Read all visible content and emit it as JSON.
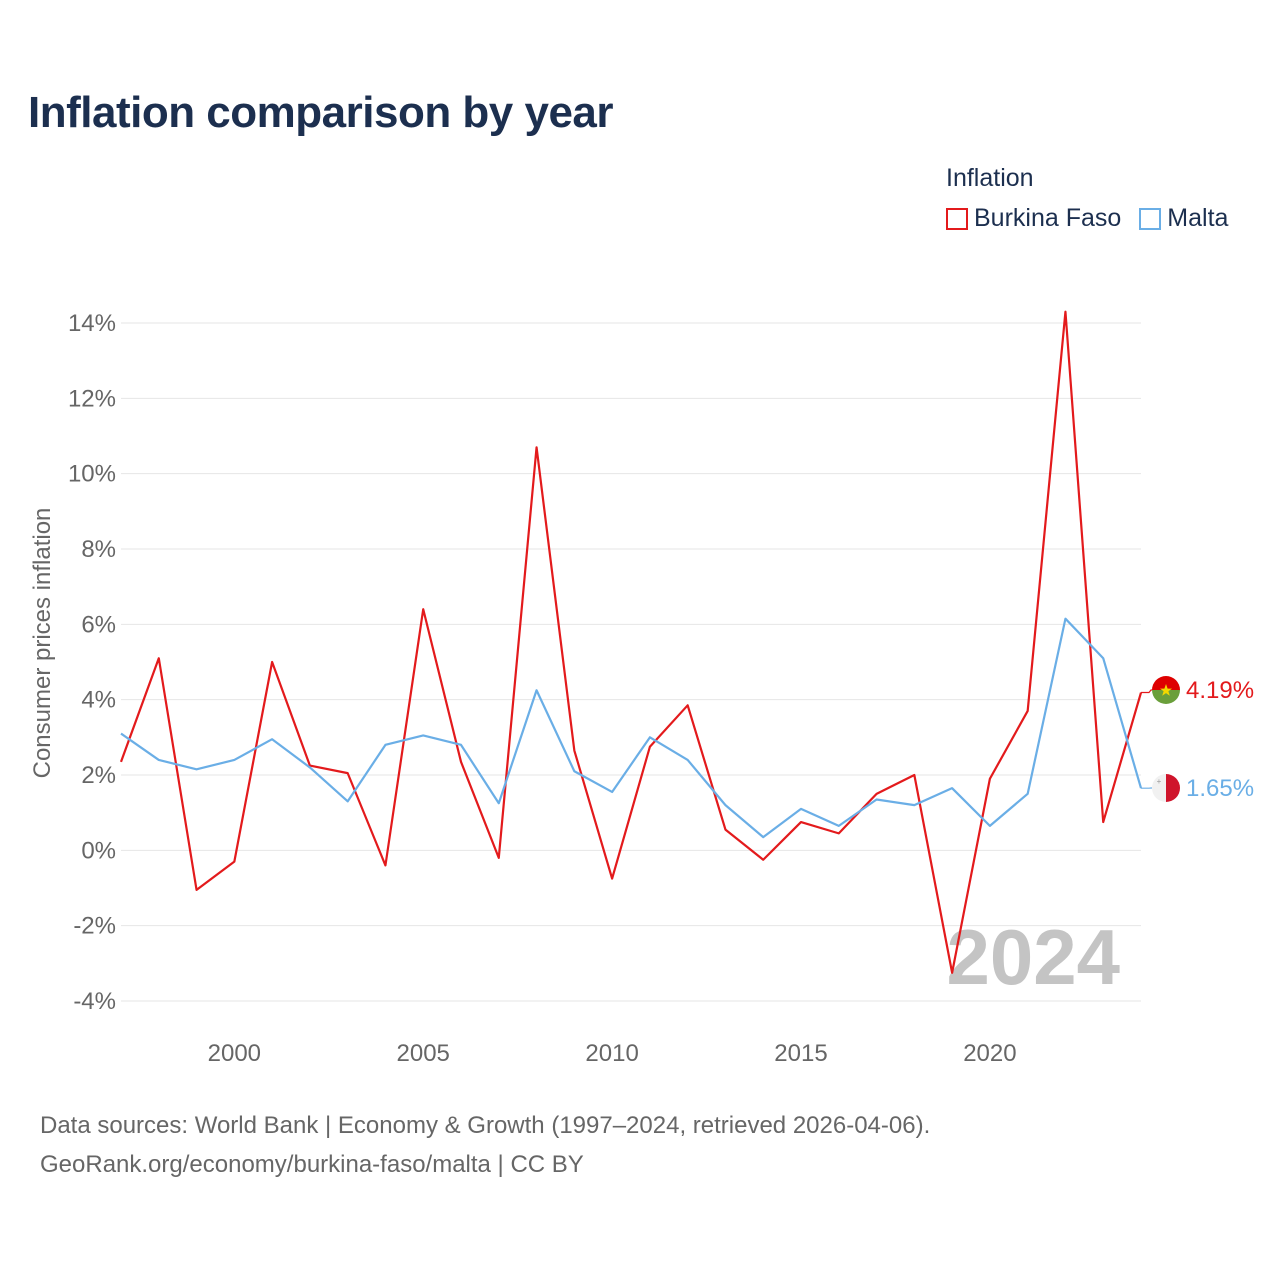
{
  "title": "Inflation comparison by year",
  "legend": {
    "title": "Inflation",
    "items": [
      {
        "label": "Burkina Faso",
        "color": "#e31a1c"
      },
      {
        "label": "Malta",
        "color": "#6aaee6"
      }
    ]
  },
  "source": {
    "line1": "Data sources: World Bank | Economy & Growth (1997–2024, retrieved 2026-04-06).",
    "line2": "GeoRank.org/economy/burkina-faso/malta | CC BY"
  },
  "chart_data": {
    "type": "line",
    "title": "Inflation comparison by year",
    "xlabel": "",
    "ylabel": "Consumer prices inflation",
    "xlim": [
      1997,
      2024
    ],
    "ylim": [
      -4,
      14
    ],
    "x_ticks": [
      2000,
      2005,
      2010,
      2015,
      2020
    ],
    "y_ticks": [
      -4,
      -2,
      0,
      2,
      4,
      6,
      8,
      10,
      12,
      14
    ],
    "y_tick_labels": [
      "-4%",
      "-2%",
      "0%",
      "2%",
      "4%",
      "6%",
      "8%",
      "10%",
      "12%",
      "14%"
    ],
    "grid": true,
    "watermark_year": "2024",
    "x": [
      1997,
      1998,
      1999,
      2000,
      2001,
      2002,
      2003,
      2004,
      2005,
      2006,
      2007,
      2008,
      2009,
      2010,
      2011,
      2012,
      2013,
      2014,
      2015,
      2016,
      2017,
      2018,
      2019,
      2020,
      2021,
      2022,
      2023,
      2024
    ],
    "series": [
      {
        "name": "Burkina Faso",
        "color": "#e31a1c",
        "end_label": "4.19%",
        "values": [
          2.35,
          5.1,
          -1.05,
          -0.3,
          5.0,
          2.25,
          2.05,
          -0.4,
          6.4,
          2.35,
          -0.2,
          10.7,
          2.65,
          -0.75,
          2.75,
          3.85,
          0.55,
          -0.25,
          0.75,
          0.45,
          1.5,
          2.0,
          -3.25,
          1.9,
          3.7,
          14.3,
          0.75,
          4.19
        ]
      },
      {
        "name": "Malta",
        "color": "#6aaee6",
        "end_label": "1.65%",
        "values": [
          3.1,
          2.4,
          2.15,
          2.4,
          2.95,
          2.2,
          1.3,
          2.8,
          3.05,
          2.8,
          1.25,
          4.25,
          2.1,
          1.55,
          3.0,
          2.4,
          1.2,
          0.35,
          1.1,
          0.65,
          1.35,
          1.2,
          1.65,
          0.65,
          1.5,
          6.15,
          5.1,
          1.65
        ]
      }
    ]
  }
}
